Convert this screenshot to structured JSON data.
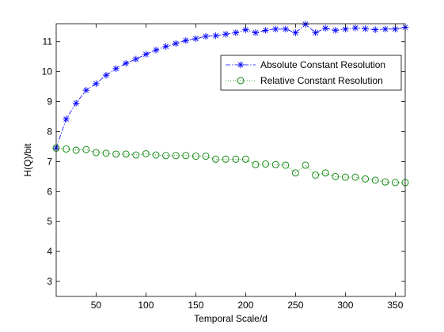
{
  "chart_data": {
    "type": "line",
    "title": "",
    "xlabel": "Temporal Scale/d",
    "ylabel": "H(Q)/bit",
    "xlim": [
      10,
      360
    ],
    "ylim": [
      2.5,
      11.6
    ],
    "xticks": [
      50,
      100,
      150,
      200,
      250,
      300,
      350
    ],
    "yticks": [
      3,
      4,
      5,
      6,
      7,
      8,
      9,
      10,
      11
    ],
    "grid": false,
    "legend_position": "top-right",
    "x": [
      10,
      20,
      30,
      40,
      50,
      60,
      70,
      80,
      90,
      100,
      110,
      120,
      130,
      140,
      150,
      160,
      170,
      180,
      190,
      200,
      210,
      220,
      230,
      240,
      250,
      260,
      270,
      280,
      290,
      300,
      310,
      320,
      330,
      340,
      350,
      360
    ],
    "series": [
      {
        "name": "Absolute Constant Resolution",
        "color": "#0000ff",
        "marker": "asterisk",
        "line": "dash-dot",
        "values": [
          7.45,
          8.42,
          8.95,
          9.38,
          9.6,
          9.88,
          10.1,
          10.28,
          10.42,
          10.58,
          10.72,
          10.84,
          10.94,
          11.04,
          11.1,
          11.18,
          11.2,
          11.25,
          11.3,
          11.4,
          11.3,
          11.38,
          11.42,
          11.42,
          11.3,
          11.58,
          11.3,
          11.45,
          11.38,
          11.42,
          11.46,
          11.43,
          11.4,
          11.42,
          11.42,
          11.48
        ]
      },
      {
        "name": "Relative Constant Resolution",
        "color": "#008000",
        "marker": "circle",
        "line": "dotted",
        "values": [
          7.45,
          7.42,
          7.38,
          7.4,
          7.3,
          7.28,
          7.25,
          7.25,
          7.22,
          7.26,
          7.22,
          7.2,
          7.2,
          7.2,
          7.18,
          7.18,
          7.08,
          7.08,
          7.08,
          7.08,
          6.9,
          6.92,
          6.9,
          6.88,
          6.62,
          6.88,
          6.55,
          6.62,
          6.5,
          6.48,
          6.48,
          6.42,
          6.38,
          6.32,
          6.3,
          6.3
        ]
      }
    ]
  }
}
